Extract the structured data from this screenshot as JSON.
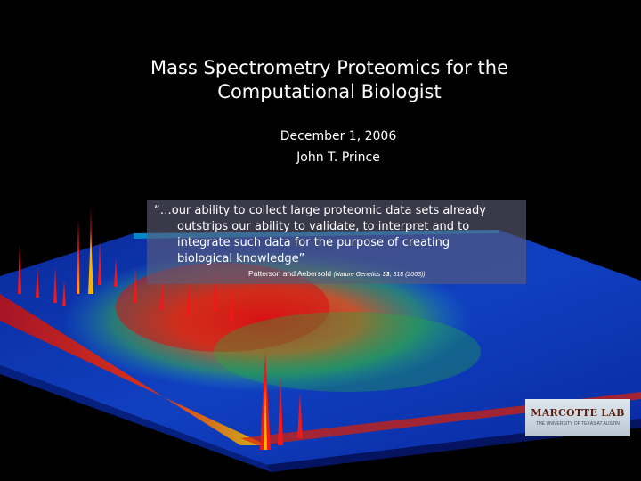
{
  "slide": {
    "title_line1": "Mass Spectrometry Proteomics for the",
    "title_line2": "Computational Biologist",
    "date": "December 1, 2006",
    "author": "John T. Prince"
  },
  "quote": {
    "line1": "“…our ability to collect large proteomic data sets already",
    "line2": "outstrips our ability to validate, to interpret and to",
    "line3": "integrate such data for the purpose of creating",
    "line4": "biological knowledge”",
    "citation": {
      "authors": "Patterson and Aebersold",
      "journal": "(Nature Genetics",
      "volume": "33",
      "pages_year": ", 318 (2003))"
    }
  },
  "logo": {
    "title": "MARCOTTE LAB",
    "subtitle": "THE UNIVERSITY OF TEXAS AT AUSTIN"
  },
  "background_image": "3D mass spectrometry spectrum heatmap landscape",
  "colors": {
    "background": "#000000",
    "text": "#ffffff",
    "quote_box": "#5c5c78",
    "logo_title": "#5a1f10"
  }
}
